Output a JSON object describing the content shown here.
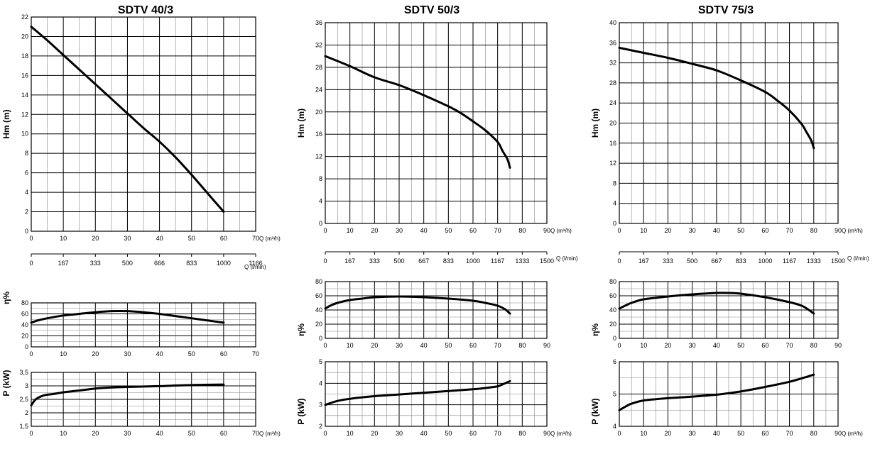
{
  "chart_data": [
    {
      "type": "line",
      "title": "SDTV 40/3",
      "panels": {
        "head": {
          "ylabel": "Hm   (m)",
          "xlabel": "Q (m³/h)",
          "xlim": [
            0,
            70
          ],
          "xticks": [
            0,
            10,
            20,
            30,
            40,
            50,
            60,
            70
          ],
          "ylim": [
            0,
            22
          ],
          "yticks": [
            0,
            2,
            4,
            6,
            8,
            10,
            12,
            14,
            16,
            18,
            20,
            22
          ],
          "x": [
            0,
            5,
            10,
            15,
            20,
            25,
            30,
            35,
            40,
            45,
            50,
            55,
            60
          ],
          "y": [
            21,
            19.6,
            18.1,
            16.6,
            15.1,
            13.6,
            12.1,
            10.6,
            9.2,
            7.6,
            5.8,
            3.9,
            2
          ]
        },
        "flow_lmin": {
          "xlabel": "Q (l/min)",
          "ticks": [
            "0",
            "167",
            "333",
            "500",
            "666",
            "833",
            "1000",
            "1166"
          ]
        },
        "efficiency": {
          "ylabel": "η%",
          "xlim": [
            0,
            70
          ],
          "xticks": [
            0,
            10,
            20,
            30,
            40,
            50,
            60,
            70
          ],
          "ylim": [
            0,
            80
          ],
          "yticks": [
            0,
            20,
            40,
            60,
            80
          ],
          "x": [
            0,
            2,
            5,
            10,
            15,
            20,
            25,
            30,
            35,
            40,
            45,
            50,
            55,
            60
          ],
          "y": [
            44,
            48,
            52,
            57,
            60,
            63,
            65,
            65,
            63,
            60,
            56,
            52,
            48,
            44
          ]
        },
        "power": {
          "ylabel": "P   (kW)",
          "xlabel": "Q (m³/h)",
          "xlim": [
            0,
            70
          ],
          "xticks": [
            0,
            10,
            20,
            30,
            40,
            50,
            60,
            70
          ],
          "ylim": [
            1.5,
            3.5
          ],
          "yticks": [
            1.5,
            2,
            2.5,
            3,
            3.5
          ],
          "x": [
            0,
            1,
            2,
            4,
            7,
            10,
            15,
            20,
            25,
            30,
            40,
            50,
            60
          ],
          "y": [
            2.28,
            2.45,
            2.55,
            2.65,
            2.7,
            2.76,
            2.83,
            2.9,
            2.94,
            2.96,
            2.99,
            3.03,
            3.05
          ]
        }
      }
    },
    {
      "type": "line",
      "title": "SDTV 50/3",
      "panels": {
        "head": {
          "ylabel": "Hm   (m)",
          "xlabel": "Q (m³/h)",
          "xlim": [
            0,
            90
          ],
          "xticks": [
            0,
            10,
            20,
            30,
            40,
            50,
            60,
            70,
            80,
            90
          ],
          "ylim": [
            0,
            36
          ],
          "yticks": [
            0,
            4,
            8,
            12,
            16,
            20,
            24,
            28,
            32,
            36
          ],
          "x": [
            0,
            10,
            20,
            30,
            40,
            50,
            55,
            60,
            65,
            70,
            72,
            74,
            75
          ],
          "y": [
            30,
            28.2,
            26.2,
            24.8,
            23,
            21,
            19.8,
            18.3,
            16.7,
            14.6,
            13,
            11.5,
            10
          ]
        },
        "flow_lmin": {
          "xlabel": "Q (l/min)",
          "ticks": [
            "0",
            "167",
            "333",
            "500",
            "667",
            "833",
            "1000",
            "1167",
            "1333",
            "1500"
          ]
        },
        "efficiency": {
          "ylabel": "η%",
          "xlim": [
            0,
            90
          ],
          "xticks": [
            0,
            10,
            20,
            30,
            40,
            50,
            60,
            70,
            80,
            90
          ],
          "ylim": [
            0,
            80
          ],
          "yticks": [
            0,
            20,
            40,
            60,
            80
          ],
          "x": [
            0,
            2,
            5,
            10,
            15,
            20,
            30,
            40,
            50,
            60,
            65,
            70,
            73,
            75
          ],
          "y": [
            42,
            46,
            50,
            54,
            56,
            58,
            59,
            58,
            56,
            53,
            50,
            46,
            41,
            35
          ]
        },
        "power": {
          "ylabel": "P   (kW)",
          "xlabel": "Q (m³/h)",
          "xlim": [
            0,
            90
          ],
          "xticks": [
            0,
            10,
            20,
            30,
            40,
            50,
            60,
            70,
            80,
            90
          ],
          "ylim": [
            2,
            5
          ],
          "yticks": [
            2,
            3,
            4,
            5
          ],
          "x": [
            0,
            5,
            10,
            20,
            30,
            40,
            50,
            60,
            65,
            70,
            72,
            75
          ],
          "y": [
            3,
            3.18,
            3.28,
            3.4,
            3.48,
            3.56,
            3.64,
            3.72,
            3.78,
            3.86,
            3.95,
            4.1
          ]
        }
      }
    },
    {
      "type": "line",
      "title": "SDTV 75/3",
      "panels": {
        "head": {
          "ylabel": "Hm   (m)",
          "xlabel": "Q (m³/h)",
          "xlim": [
            0,
            90
          ],
          "xticks": [
            0,
            10,
            20,
            30,
            40,
            50,
            60,
            70,
            80,
            90
          ],
          "ylim": [
            0,
            40
          ],
          "yticks": [
            0,
            4,
            8,
            12,
            16,
            20,
            24,
            28,
            32,
            36,
            40
          ],
          "x": [
            0,
            10,
            20,
            30,
            40,
            50,
            60,
            65,
            70,
            75,
            77,
            79,
            80
          ],
          "y": [
            35,
            34,
            33,
            31.8,
            30.5,
            28.5,
            26.2,
            24.5,
            22.5,
            19.8,
            18.2,
            16.5,
            15
          ]
        },
        "flow_lmin": {
          "xlabel": "Q (l/min)",
          "ticks": [
            "0",
            "167",
            "333",
            "500",
            "667",
            "833",
            "1000",
            "1167",
            "1333",
            "1500"
          ]
        },
        "efficiency": {
          "ylabel": "η%",
          "xlim": [
            0,
            90
          ],
          "xticks": [
            0,
            10,
            20,
            30,
            40,
            50,
            60,
            70,
            80,
            90
          ],
          "ylim": [
            0,
            80
          ],
          "yticks": [
            0,
            20,
            40,
            60,
            80
          ],
          "x": [
            0,
            3,
            5,
            10,
            20,
            30,
            40,
            45,
            50,
            60,
            70,
            75,
            78,
            80
          ],
          "y": [
            42,
            47,
            50,
            55,
            59,
            62,
            64,
            64,
            63,
            58,
            51,
            46,
            40,
            35
          ]
        },
        "power": {
          "ylabel": "P   (kW)",
          "xlabel": "Q (m³/h)",
          "xlim": [
            0,
            90
          ],
          "xticks": [
            0,
            10,
            20,
            30,
            40,
            50,
            60,
            70,
            80,
            90
          ],
          "ylim": [
            4,
            6
          ],
          "yticks": [
            4,
            5,
            6
          ],
          "x": [
            0,
            3,
            5,
            10,
            20,
            30,
            40,
            50,
            60,
            70,
            80
          ],
          "y": [
            4.5,
            4.63,
            4.7,
            4.8,
            4.87,
            4.92,
            4.98,
            5.08,
            5.22,
            5.38,
            5.6
          ]
        }
      }
    }
  ]
}
